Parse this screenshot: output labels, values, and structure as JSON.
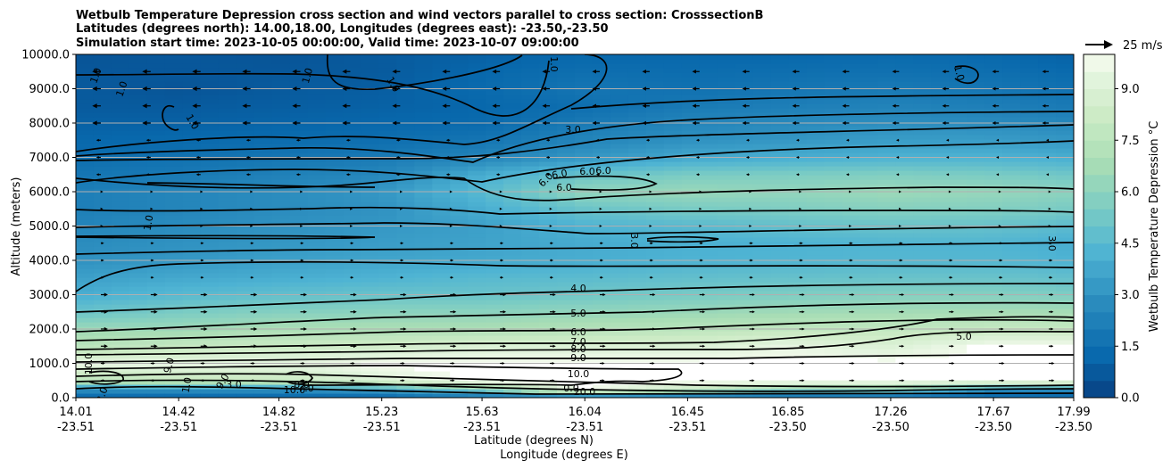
{
  "chart_data": {
    "type": "heatmap",
    "title_lines": [
      "Wetbulb Temperature Depression cross section and wind vectors parallel to cross section: CrosssectionB",
      "Latitudes (degrees north): 14.00,18.00, Longitudes (degrees east): -23.50,-23.50",
      "Simulation start time: 2023-10-05 00:00:00, Valid time: 2023-10-07 09:00:00"
    ],
    "ylabel": "Altitude (meters)",
    "xlabel_lat": "Latitude (degrees N)",
    "xlabel_lon": "Longitude (degrees E)",
    "ylim": [
      0,
      10000
    ],
    "y_ticks": [
      "0.0",
      "1000.0",
      "2000.0",
      "3000.0",
      "4000.0",
      "5000.0",
      "6000.0",
      "7000.0",
      "8000.0",
      "9000.0",
      "10000.0"
    ],
    "x_ticks": [
      {
        "lat": "14.01",
        "lon": "-23.51"
      },
      {
        "lat": "14.42",
        "lon": "-23.51"
      },
      {
        "lat": "14.82",
        "lon": "-23.51"
      },
      {
        "lat": "15.23",
        "lon": "-23.51"
      },
      {
        "lat": "15.63",
        "lon": "-23.51"
      },
      {
        "lat": "16.04",
        "lon": "-23.51"
      },
      {
        "lat": "16.45",
        "lon": "-23.51"
      },
      {
        "lat": "16.85",
        "lon": "-23.50"
      },
      {
        "lat": "17.26",
        "lon": "-23.50"
      },
      {
        "lat": "17.67",
        "lon": "-23.50"
      },
      {
        "lat": "17.99",
        "lon": "-23.50"
      }
    ],
    "colorbar": {
      "label": "Wetbulb Temperature Depression °C",
      "range": [
        0,
        10
      ],
      "ticks": [
        "0.0",
        "1.5",
        "3.0",
        "4.5",
        "6.0",
        "7.5",
        "9.0"
      ]
    },
    "wind_key_label": "25 m/s",
    "contour_labels": [
      "1.0",
      "1.0",
      "1.0",
      "1.0",
      "1.0",
      "1.0",
      "1.0",
      "1.0",
      "3.0",
      "3.0",
      "3.0",
      "6.0",
      "6.0",
      "6.0",
      "6.0",
      "6.0",
      "4.0",
      "5.0",
      "6.0",
      "7.0",
      "8.0",
      "9.0",
      "10.0",
      "10.0",
      "9.0",
      "9.0",
      "5.0",
      "2.0",
      "1.0",
      "3.0",
      "10.0",
      "8.0",
      "7.0",
      "0.0",
      "20.0"
    ],
    "profile_altitudes": [
      0,
      250,
      500,
      1000,
      1500,
      2000,
      2500,
      3000,
      3500,
      4000,
      4500,
      5000,
      5500,
      6000,
      6500,
      7000,
      7500,
      8000,
      8500,
      9000,
      9500,
      10000
    ],
    "profile_latitudes": [
      14.01,
      14.42,
      14.82,
      15.23,
      15.63,
      16.04,
      16.45,
      16.85,
      17.26,
      17.67,
      17.99
    ],
    "depression_profiles": [
      [
        1.0,
        3.0,
        7.5,
        9.5,
        7.5,
        6.5,
        5.0,
        4.0,
        3.5,
        3.0,
        2.8,
        2.5,
        2.2,
        2.2,
        1.8,
        1.5,
        1.2,
        1.0,
        0.8,
        0.8,
        0.7,
        0.6
      ],
      [
        1.0,
        3.0,
        8.0,
        9.5,
        8.0,
        6.5,
        5.5,
        4.5,
        3.8,
        3.2,
        3.0,
        2.8,
        2.5,
        2.5,
        2.0,
        1.6,
        1.3,
        1.0,
        0.8,
        0.6,
        0.7,
        0.7
      ],
      [
        1.0,
        3.0,
        8.0,
        9.5,
        8.2,
        7.0,
        5.8,
        4.8,
        4.0,
        3.5,
        3.2,
        3.0,
        2.8,
        2.8,
        2.3,
        1.8,
        1.4,
        1.1,
        0.9,
        0.8,
        0.7,
        0.6
      ],
      [
        1.0,
        3.5,
        9.0,
        10.0,
        8.5,
        7.0,
        6.0,
        5.0,
        4.2,
        3.7,
        3.4,
        3.2,
        3.0,
        3.2,
        2.6,
        2.0,
        1.5,
        1.2,
        1.0,
        0.9,
        0.8,
        0.8
      ],
      [
        1.5,
        6.0,
        10.0,
        10.0,
        9.0,
        7.0,
        6.0,
        5.0,
        4.5,
        3.8,
        3.6,
        3.5,
        4.0,
        4.5,
        4.0,
        2.5,
        1.8,
        1.3,
        1.2,
        1.3,
        1.2,
        1.0
      ],
      [
        1.2,
        10.0,
        10.0,
        10.0,
        9.0,
        7.3,
        6.2,
        5.2,
        4.6,
        4.0,
        3.9,
        4.2,
        5.0,
        6.2,
        5.0,
        3.2,
        2.5,
        2.0,
        1.5,
        1.8,
        1.5,
        1.2
      ],
      [
        1.0,
        8.0,
        10.0,
        10.0,
        9.0,
        7.5,
        6.4,
        5.4,
        4.8,
        4.2,
        4.1,
        4.5,
        5.4,
        6.4,
        5.5,
        3.8,
        3.0,
        2.5,
        2.0,
        1.6,
        1.4,
        1.2
      ],
      [
        1.0,
        6.0,
        10.0,
        10.0,
        9.5,
        7.8,
        6.6,
        5.6,
        4.9,
        4.3,
        4.2,
        4.8,
        5.6,
        6.2,
        5.6,
        4.0,
        3.2,
        2.7,
        2.2,
        1.8,
        1.5,
        1.2
      ],
      [
        1.0,
        6.0,
        10.0,
        10.0,
        9.0,
        7.8,
        6.7,
        5.8,
        5.0,
        4.4,
        4.3,
        5.0,
        5.8,
        6.5,
        5.7,
        4.2,
        3.4,
        2.9,
        2.4,
        2.0,
        1.6,
        1.3
      ],
      [
        1.0,
        3.0,
        10.0,
        10.0,
        10.0,
        8.0,
        6.8,
        5.8,
        5.0,
        4.4,
        4.3,
        4.9,
        5.7,
        6.3,
        5.5,
        4.2,
        3.4,
        2.8,
        2.2,
        1.8,
        1.5,
        1.2
      ],
      [
        1.0,
        3.0,
        10.0,
        10.0,
        10.0,
        8.0,
        6.8,
        5.6,
        4.8,
        4.2,
        4.0,
        4.6,
        5.4,
        6.0,
        5.2,
        4.0,
        3.2,
        2.6,
        2.0,
        1.6,
        1.3,
        1.0
      ]
    ],
    "colors": {
      "low": "#084081",
      "high": "#f7fcf0",
      "contour": "#000000",
      "arrows": "#000000"
    }
  }
}
